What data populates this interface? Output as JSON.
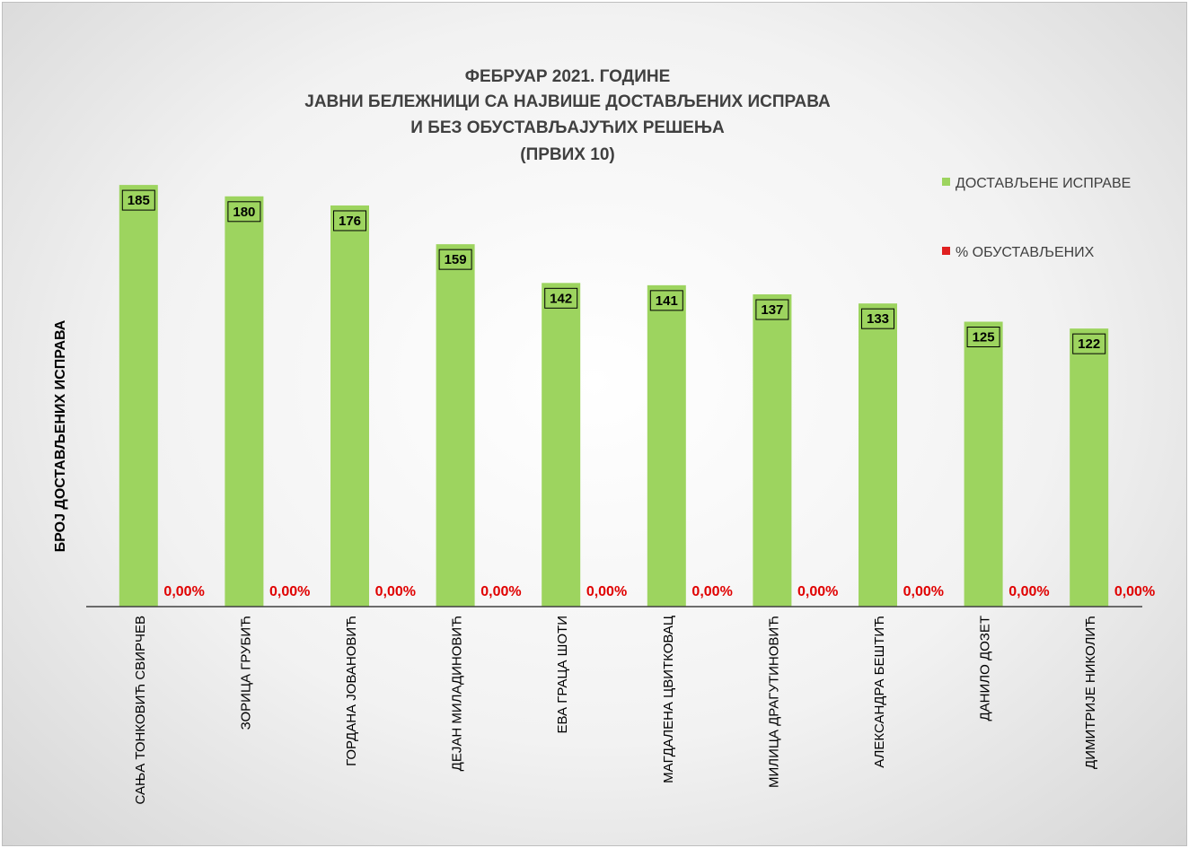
{
  "chart_data": {
    "type": "bar",
    "title_lines": [
      "ФЕБРУАР 2021. ГОДИНЕ",
      "ЈАВНИ БЕЛЕЖНИЦИ СА НАЈВИШЕ ДОСТАВЉЕНИХ ИСПРАВА",
      "И БЕЗ ОБУСТАВЉАЈУЋИХ РЕШЕЊА",
      "(ПРВИХ 10)"
    ],
    "ylabel": "БРОЈ ДОСТАВЉЕНИХ ИСПРАВА",
    "xlabel": "",
    "ylim": [
      0,
      200
    ],
    "categories": [
      "САЊА ТОНКОВИЋ СВИРЧЕВ",
      "ЗОРИЦА ГРУБИЋ",
      "ГОРДАНА ЈОВАНОВИЋ",
      "ДЕЈАН МИЛАДИНОВИЋ",
      "ЕВА ГРАЦА ШОТИ",
      "МАГДАЛЕНА ЦВИТКОВАЦ",
      "МИЛИЦА ДРАГУТИНОВИЋ",
      "АЛЕКСАНДРА БЕШТИЋ",
      "ДАНИЛО ДОЗЕТ",
      "ДИМИТРИЈЕ НИКОЛИЋ"
    ],
    "series": [
      {
        "name": "ДОСТАВЉЕНЕ ИСПРАВЕ",
        "color": "#9dd45f",
        "values": [
          185,
          180,
          176,
          159,
          142,
          141,
          137,
          133,
          125,
          122
        ],
        "labels": [
          "185",
          "180",
          "176",
          "159",
          "142",
          "141",
          "137",
          "133",
          "125",
          "122"
        ]
      },
      {
        "name": "% ОБУСТАВЉЕНИХ",
        "color": "#e02020",
        "values": [
          0,
          0,
          0,
          0,
          0,
          0,
          0,
          0,
          0,
          0
        ],
        "labels": [
          "0,00%",
          "0,00%",
          "0,00%",
          "0,00%",
          "0,00%",
          "0,00%",
          "0,00%",
          "0,00%",
          "0,00%",
          "0,00%"
        ]
      }
    ],
    "legend_position": "top-right",
    "grid": false
  }
}
